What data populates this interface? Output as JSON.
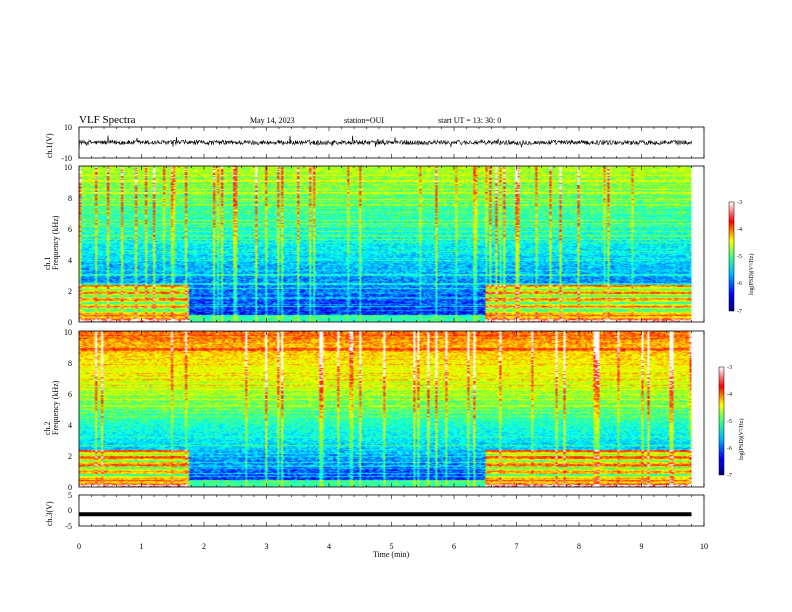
{
  "header": {
    "title": "VLF Spectra",
    "date": "May 14, 2023",
    "station": "station=OUI",
    "start": "start  UT  =   13: 30: 0"
  },
  "chart_data": [
    {
      "id": "ch1-waveform",
      "type": "line",
      "ylabel": "ch.1(V)",
      "ylim": [
        -10,
        10
      ],
      "yticks": [
        "10",
        "-10"
      ],
      "xlim": [
        0,
        10
      ],
      "series_color": "#000000",
      "amplitude_note_V": 1.5
    },
    {
      "id": "ch1-spectrogram",
      "type": "heatmap",
      "ylabel": "ch.1\nFrequency (kHz)",
      "ylim": [
        0,
        10
      ],
      "yticks": [
        "0",
        "2",
        "4",
        "6",
        "8",
        "10"
      ],
      "xlim": [
        0,
        10
      ],
      "colorbar": {
        "label": "log(PSD)(V²/Hz)",
        "range": [
          -7,
          -3
        ],
        "ticks": [
          "-3",
          "-4",
          "-5",
          "-6",
          "-7"
        ]
      },
      "active_intervals_min": [
        [
          0,
          1.75
        ],
        [
          6.5,
          9.8
        ]
      ],
      "data_end_min": 9.8
    },
    {
      "id": "ch2-spectrogram",
      "type": "heatmap",
      "ylabel": "ch.2\nFrequency (kHz)",
      "ylim": [
        0,
        10
      ],
      "yticks": [
        "0",
        "2",
        "4",
        "6",
        "8",
        "10"
      ],
      "xlim": [
        0,
        10
      ],
      "colorbar": {
        "label": "log(PSD)(V²/Hz)",
        "range": [
          -7,
          -3
        ],
        "ticks": [
          "-3",
          "-4",
          "-5",
          "-6",
          "-7"
        ]
      },
      "active_intervals_min": [
        [
          0,
          1.75
        ],
        [
          6.5,
          9.8
        ]
      ],
      "data_end_min": 9.8
    },
    {
      "id": "ch3-waveform",
      "type": "line",
      "ylabel": "ch.3(V)",
      "ylim": [
        -5,
        5
      ],
      "yticks": [
        "5",
        "0",
        "-5"
      ],
      "xlim": [
        0,
        10
      ],
      "constant_value_V": -1.2,
      "series_color": "#000000"
    }
  ],
  "x_axis": {
    "label": "Time  (min)",
    "ticks": [
      "0",
      "1",
      "2",
      "3",
      "4",
      "5",
      "6",
      "7",
      "8",
      "9",
      "10"
    ],
    "range": [
      0,
      10
    ]
  },
  "colors": {
    "colormap": [
      "#000080",
      "#0000ff",
      "#00a0ff",
      "#00ffff",
      "#40ff80",
      "#c0ff00",
      "#ffff00",
      "#ff8000",
      "#ff0000",
      "#ffffff"
    ]
  }
}
